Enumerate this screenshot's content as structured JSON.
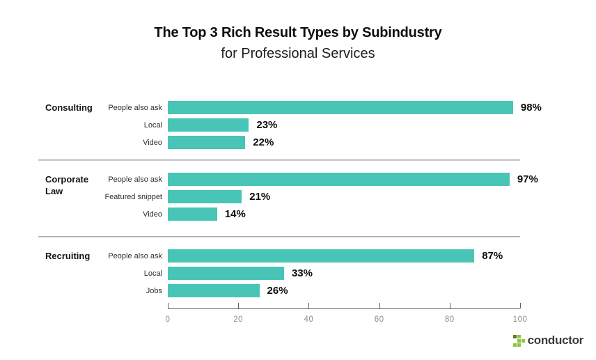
{
  "chart_data": {
    "type": "bar",
    "orientation": "horizontal",
    "title": "The Top 3 Rich Result Types by Subindustry",
    "subtitle": "for Professional Services",
    "value_unit": "%",
    "xlim": [
      0,
      100
    ],
    "x_ticks": [
      0,
      20,
      40,
      60,
      80,
      100
    ],
    "grid": false,
    "legend": "none",
    "bar_color": "#48c5b6",
    "groups": [
      {
        "name": "Consulting",
        "rows": [
          {
            "label": "People also ask",
            "value": 98,
            "display": "98%"
          },
          {
            "label": "Local",
            "value": 23,
            "display": "23%"
          },
          {
            "label": "Video",
            "value": 22,
            "display": "22%"
          }
        ]
      },
      {
        "name": "Corporate Law",
        "rows": [
          {
            "label": "People also ask",
            "value": 97,
            "display": "97%"
          },
          {
            "label": "Featured snippet",
            "value": 21,
            "display": "21%"
          },
          {
            "label": "Video",
            "value": 14,
            "display": "14%"
          }
        ]
      },
      {
        "name": "Recruiting",
        "rows": [
          {
            "label": "People also ask",
            "value": 87,
            "display": "87%"
          },
          {
            "label": "Local",
            "value": 33,
            "display": "33%"
          },
          {
            "label": "Jobs",
            "value": 26,
            "display": "26%"
          }
        ]
      }
    ]
  },
  "branding": {
    "logo_text": "conductor",
    "logo_text_color": "#3b3b3b",
    "logo_green_light": "#8dc63f",
    "logo_green_dark": "#5e7f1f"
  }
}
